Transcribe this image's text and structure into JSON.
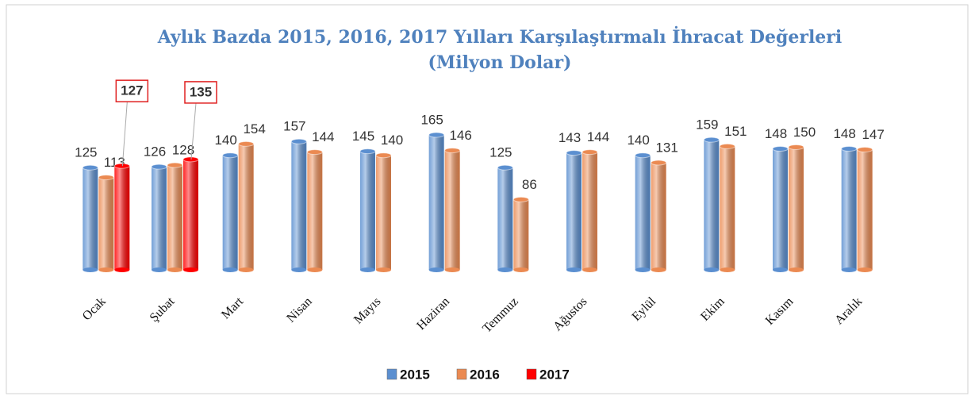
{
  "chart_data": {
    "type": "bar",
    "title": "Aylık Bazda 2015, 2016, 2017 Yılları Karşılaştırmalı İhracat Değerleri",
    "subtitle": "(Milyon Dolar)",
    "categories": [
      "Ocak",
      "Şubat",
      "Mart",
      "Nisan",
      "Mayıs",
      "Haziran",
      "Temmuz",
      "Ağustos",
      "Eylül",
      "Ekim",
      "Kasım",
      "Aralık"
    ],
    "series": [
      {
        "name": "2015",
        "color": "#5b8fd0",
        "values": [
          125,
          126,
          140,
          157,
          145,
          165,
          125,
          143,
          140,
          159,
          148,
          148
        ]
      },
      {
        "name": "2016",
        "color": "#eb8a52",
        "values": [
          113,
          128,
          154,
          144,
          140,
          146,
          86,
          144,
          131,
          151,
          150,
          147
        ]
      },
      {
        "name": "2017",
        "color": "#ff0000",
        "values": [
          127,
          135,
          null,
          null,
          null,
          null,
          null,
          null,
          null,
          null,
          null,
          null
        ]
      }
    ],
    "legend": "bottom"
  }
}
